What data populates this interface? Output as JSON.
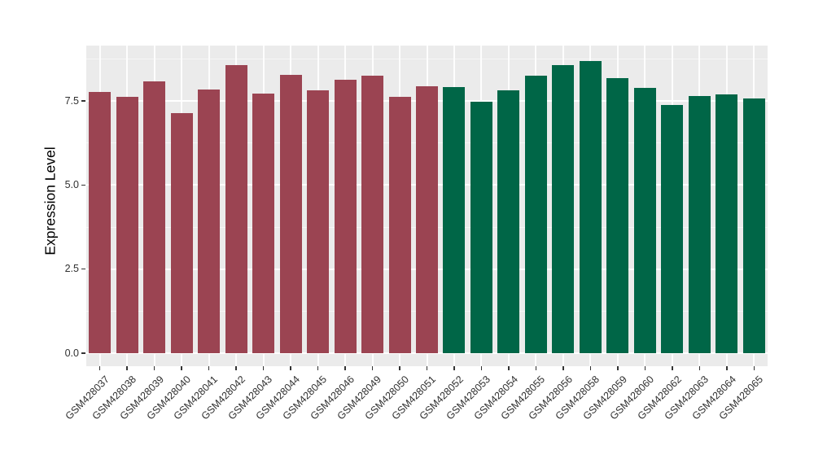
{
  "page": {
    "background": "#FFFFFF"
  },
  "chart_data": {
    "type": "bar",
    "title": "",
    "xlabel": "",
    "ylabel": "Expression Level",
    "legend_position": "none",
    "grid": true,
    "panel_bg": "#EBEBEB",
    "grid_color": "#FFFFFF",
    "tick_color": "#333333",
    "ylim": [
      -0.44,
      9.15
    ],
    "yticks": [
      0,
      2.5,
      5,
      7.5
    ],
    "ytick_labels": [
      "0.0",
      "2.5",
      "5.0",
      "7.5"
    ],
    "y_minor_ticks": [
      1.25,
      3.75,
      6.25,
      8.75
    ],
    "categories": [
      "GSM428037",
      "GSM428038",
      "GSM428039",
      "GSM428040",
      "GSM428041",
      "GSM428042",
      "GSM428043",
      "GSM428044",
      "GSM428045",
      "GSM428046",
      "GSM428049",
      "GSM428050",
      "GSM428051",
      "GSM428052",
      "GSM428053",
      "GSM428054",
      "GSM428055",
      "GSM428056",
      "GSM428058",
      "GSM428059",
      "GSM428060",
      "GSM428062",
      "GSM428063",
      "GSM428064",
      "GSM428065"
    ],
    "values": [
      7.76,
      7.61,
      8.09,
      7.15,
      7.85,
      8.57,
      7.73,
      8.27,
      7.82,
      8.12,
      8.24,
      7.61,
      7.94,
      7.91,
      7.47,
      7.82,
      8.26,
      8.57,
      8.69,
      8.18,
      7.88,
      7.37,
      7.64,
      7.69,
      7.58
    ],
    "bar_groups": [
      "group1",
      "group1",
      "group1",
      "group1",
      "group1",
      "group1",
      "group1",
      "group1",
      "group1",
      "group1",
      "group1",
      "group1",
      "group1",
      "group2",
      "group2",
      "group2",
      "group2",
      "group2",
      "group2",
      "group2",
      "group2",
      "group2",
      "group2",
      "group2",
      "group2"
    ],
    "group_colors": {
      "group1": "#9B4452",
      "group2": "#006647"
    }
  }
}
